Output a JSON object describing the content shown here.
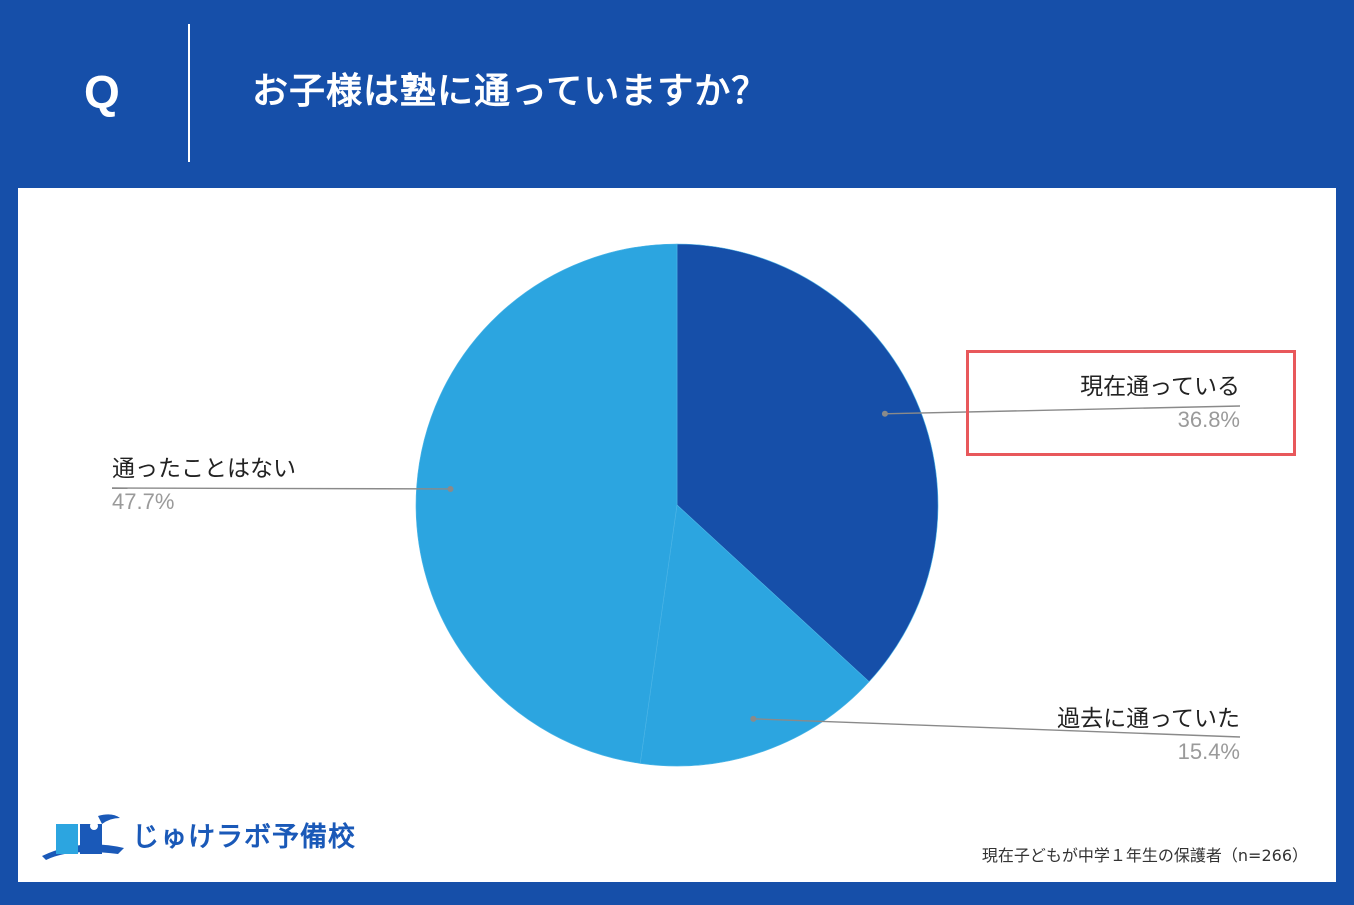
{
  "header": {
    "q_mark": "Q",
    "question": "お子様は塾に通っていますか？"
  },
  "colors": {
    "header_bg": "#164fa9",
    "slice_current": "#164fa9",
    "slice_past": "#2ca5e0",
    "slice_never": "#2ca5e0",
    "highlight_border": "#e8585b"
  },
  "chart_data": {
    "type": "pie",
    "title": "お子様は塾に通っていますか？",
    "slices": [
      {
        "label": "現在通っている",
        "value": 36.8,
        "display": "36.8%",
        "color": "#164fa9"
      },
      {
        "label": "過去に通っていた",
        "value": 15.4,
        "display": "15.4%",
        "color": "#2ca5e0"
      },
      {
        "label": "通ったことはない",
        "value": 47.7,
        "display": "47.7%",
        "color": "#2ca5e0"
      }
    ],
    "highlighted": "現在通っている",
    "legend": "none"
  },
  "footer": {
    "logo_text": "じゅけラボ予備校",
    "note": "現在子どもが中学１年生の保護者（n=266）"
  }
}
